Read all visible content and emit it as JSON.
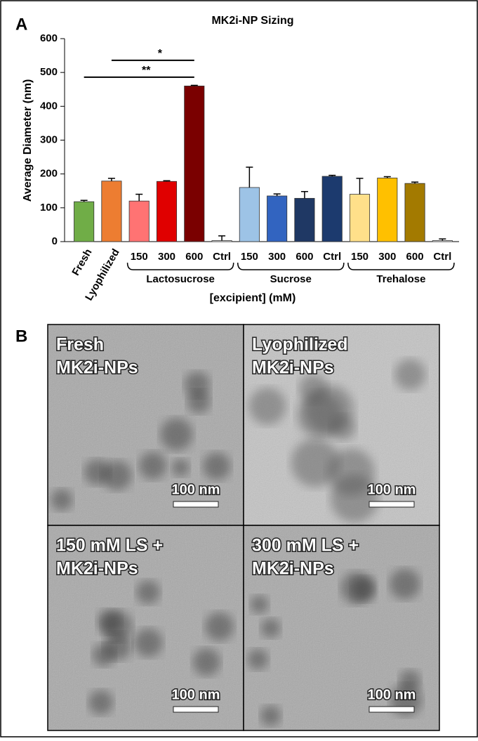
{
  "chart_data": {
    "type": "bar",
    "panel_label": "A",
    "title": "MK2i-NP Sizing",
    "y_label": "Average Diameter (nm)",
    "x_label": "[excipient]  (mM)",
    "categories": [
      "Fresh",
      "Lyophilized",
      "150",
      "300",
      "600",
      "Ctrl",
      "150",
      "300",
      "600",
      "Ctrl",
      "150",
      "300",
      "600",
      "Ctrl"
    ],
    "values": [
      118,
      179,
      120,
      178,
      460,
      3,
      160,
      135,
      128,
      193,
      140,
      188,
      172,
      3
    ],
    "errors": [
      4,
      8,
      20,
      2,
      2,
      14,
      60,
      6,
      20,
      3,
      47,
      4,
      4,
      5
    ],
    "colors": [
      "#70ad47",
      "#ed7d31",
      "#ff7373",
      "#e00000",
      "#7a0000",
      "#ffffff",
      "#9dc3e6",
      "#3264c0",
      "#1f3864",
      "#1c3a6e",
      "#ffe08a",
      "#ffc000",
      "#a37a00",
      "#ffffff"
    ],
    "groups": [
      {
        "name": "Lactosucrose",
        "from": 2,
        "to": 5
      },
      {
        "name": "Sucrose",
        "from": 6,
        "to": 9
      },
      {
        "name": "Trehalose",
        "from": 10,
        "to": 13
      }
    ],
    "annotations": [
      {
        "text": "*",
        "from": 1,
        "to": 4,
        "y": 536
      },
      {
        "text": "**",
        "from": 0,
        "to": 4,
        "y": 486
      }
    ],
    "ylim": [
      0,
      600
    ],
    "yticks": [
      0,
      100,
      200,
      300,
      400,
      500,
      600
    ]
  },
  "panel_b": {
    "label": "B",
    "images": [
      {
        "caption": [
          "Fresh",
          "MK2i-NPs"
        ],
        "scale_bar": "100 nm"
      },
      {
        "caption": [
          "Lyophilized",
          "MK2i-NPs"
        ],
        "scale_bar": "100 nm"
      },
      {
        "caption": [
          "150 mM LS +",
          "MK2i-NPs"
        ],
        "scale_bar": "100 nm"
      },
      {
        "caption": [
          "300 mM LS +",
          "MK2i-NPs"
        ],
        "scale_bar": "100 nm"
      }
    ]
  }
}
